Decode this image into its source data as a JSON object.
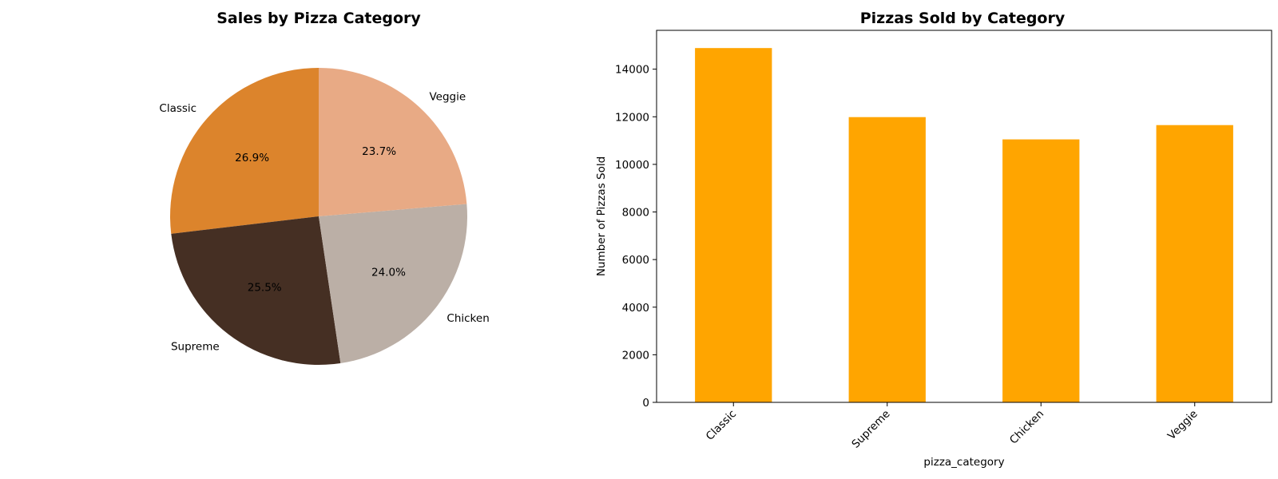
{
  "chart_data": [
    {
      "type": "pie",
      "title": "Sales by Pizza Category",
      "categories": [
        "Classic",
        "Supreme",
        "Chicken",
        "Veggie"
      ],
      "values": [
        26.9,
        25.5,
        24.0,
        23.7
      ],
      "percent_labels": [
        "26.9%",
        "25.5%",
        "24.0%",
        "23.7%"
      ],
      "colors": [
        "#dc842c",
        "#452f23",
        "#bbafa6",
        "#e8aa85"
      ],
      "start_angle": 90,
      "direction": "counterclockwise"
    },
    {
      "type": "bar",
      "title": "Pizzas Sold by Category",
      "categories": [
        "Classic",
        "Supreme",
        "Chicken",
        "Veggie"
      ],
      "values": [
        14888,
        11987,
        11050,
        11649
      ],
      "xlabel": "pizza_category",
      "ylabel": "Number of Pizzas Sold",
      "ylim": [
        0,
        15632
      ],
      "yticks": [
        "0",
        "2000",
        "4000",
        "6000",
        "8000",
        "10000",
        "12000",
        "14000"
      ],
      "bar_color": "#ffa500",
      "xtick_rotation": 45,
      "grid": false
    }
  ]
}
